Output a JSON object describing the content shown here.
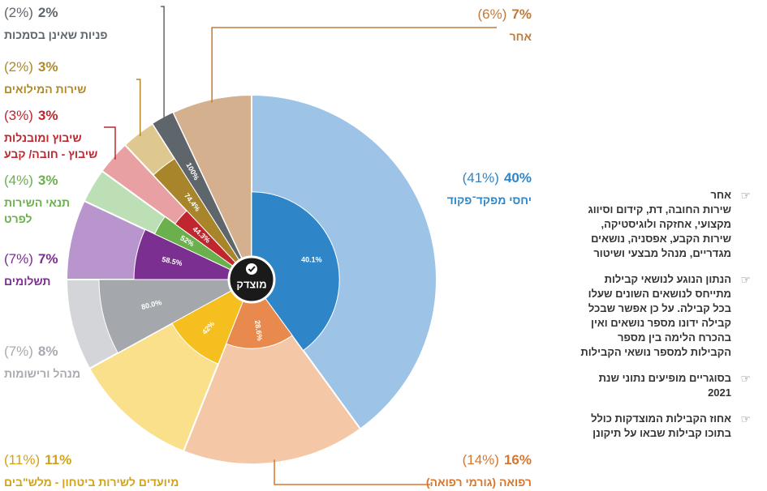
{
  "chart_data": {
    "type": "pie",
    "center_label": "מוצדק",
    "categories": [
      "יחסי מפקד־פקוד",
      "רפואה (גורמי רפואה)",
      "מיועדים לשירות ביטחון - מלש\"בים",
      "מנהל ורישומות",
      "תשלומים",
      "תנאי השירות\nלפרט",
      "שיבוץ ומובנלות\nשיבוץ - חובה/ קבע",
      "שירות המילואים",
      "פניות שאינן בסמכות",
      "אחר"
    ],
    "values": [
      40,
      16,
      11,
      8,
      7,
      3,
      3,
      3,
      2,
      7
    ],
    "value_labels": [
      "40%",
      "16%",
      "11%",
      "8%",
      "7%",
      "3%",
      "3%",
      "3%",
      "2%",
      "7%"
    ],
    "prev_values": [
      41,
      14,
      11,
      7,
      7,
      4,
      3,
      2,
      2,
      6
    ],
    "prev_value_labels": [
      "(41%)",
      "(14%)",
      "(11%)",
      "(7%)",
      "(7%)",
      "(4%)",
      "(3%)",
      "(2%)",
      "(2%)",
      "(6%)"
    ],
    "justified": [
      40.1,
      28.6,
      42,
      80,
      58.5,
      52,
      44.3,
      74.4,
      100,
      null
    ],
    "justified_labels": [
      "40.1%",
      "28.6%",
      "42%",
      "80.0%",
      "58.5%",
      "52%",
      "44.3%",
      "74.4%",
      "100%",
      null
    ],
    "colors": [
      "#9dc3e6",
      "#f4c7a6",
      "#fbe08c",
      "#d3d5d9",
      "#b895cc",
      "#bddfb5",
      "#e8a0a3",
      "#dfc88f",
      "#8b9096",
      "#d4b08e"
    ],
    "inner_colors": [
      "#2e86c8",
      "#e8894e",
      "#f5c01f",
      "#a4a8ad",
      "#7a2f91",
      "#6ab04c",
      "#c0262d",
      "#a8842a",
      "#5e656b",
      null
    ],
    "label_colors": [
      "#2e86c8",
      "#d9762c",
      "#d1a21a",
      "#a7abb0",
      "#7a2f91",
      "#6ab04c",
      "#c0262d",
      "#b08a2a",
      "#5e656b",
      "#c07a3a"
    ]
  },
  "notes": [
    {
      "title": "אחר",
      "text": "שירות החובה, דת, קידום וסיווג מקצועי, אחזקה ולוגיסטיקה, שירות הקבע, אפסניה, נושאים מגדריים, מנהל מבצעי ושיטור"
    },
    {
      "text": "הנתון הנוגע לנושאי קבילות מתייחס לנושאים השונים שעלו בכל קבילה. על כן אפשר שבכל קבילה ידונו מספר נושאים ואין בהכרח הלימה בין מספר הקבילות למספר נושאי הקבילות"
    },
    {
      "text": "בסוגריים מופיעים נתוני שנת 2021"
    },
    {
      "text": "אחוז הקבילות המוצדקות כולל בתוכו קבילות שבאו על תיקונן"
    }
  ]
}
